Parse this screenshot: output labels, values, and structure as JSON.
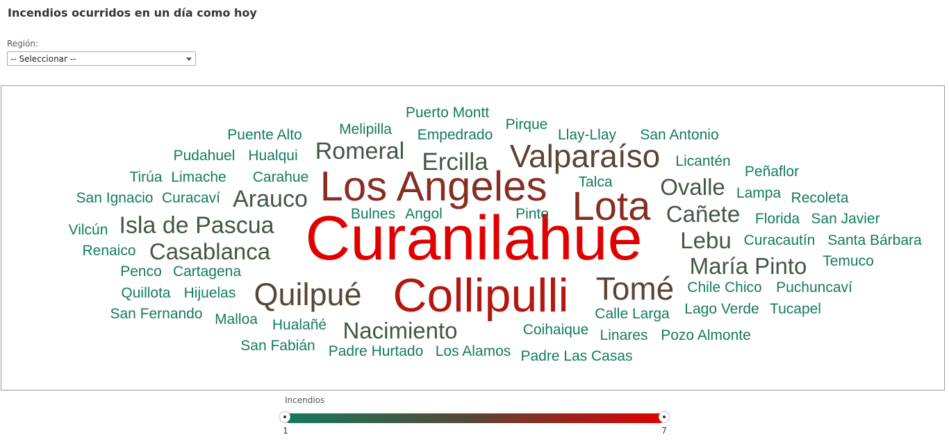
{
  "page": {
    "title": "Incendios ocurridos en un día como hoy"
  },
  "filter": {
    "label": "Región:",
    "selected": "-- Seleccionar --"
  },
  "legend": {
    "title": "Incendios",
    "min_label": "1",
    "max_label": "7",
    "color_low": "#137a5e",
    "color_high": "#e00000"
  },
  "chart_data": {
    "type": "wordcloud",
    "value_label": "Incendios",
    "value_range": [
      1,
      7
    ],
    "words": [
      {
        "text": "Curanilahue",
        "value": 7
      },
      {
        "text": "Collipulli",
        "value": 6
      },
      {
        "text": "Los Angeles",
        "value": 5
      },
      {
        "text": "Lota",
        "value": 5
      },
      {
        "text": "Quilpué",
        "value": 4
      },
      {
        "text": "Tomé",
        "value": 4
      },
      {
        "text": "Valparaíso",
        "value": 4
      },
      {
        "text": "Ercilla",
        "value": 3
      },
      {
        "text": "Romeral",
        "value": 3
      },
      {
        "text": "Arauco",
        "value": 3
      },
      {
        "text": "Isla de Pascua",
        "value": 3
      },
      {
        "text": "Casablanca",
        "value": 3
      },
      {
        "text": "Nacimiento",
        "value": 3
      },
      {
        "text": "Ovalle",
        "value": 3
      },
      {
        "text": "Cañete",
        "value": 3
      },
      {
        "text": "Lebu",
        "value": 3
      },
      {
        "text": "María Pinto",
        "value": 3
      },
      {
        "text": "Puerto Montt",
        "value": 1
      },
      {
        "text": "Melipilla",
        "value": 1
      },
      {
        "text": "Pirque",
        "value": 1
      },
      {
        "text": "Empedrado",
        "value": 1
      },
      {
        "text": "Llay-Llay",
        "value": 1
      },
      {
        "text": "San Antonio",
        "value": 1
      },
      {
        "text": "Puente Alto",
        "value": 1
      },
      {
        "text": "Pudahuel",
        "value": 1
      },
      {
        "text": "Hualqui",
        "value": 1
      },
      {
        "text": "Licantén",
        "value": 1
      },
      {
        "text": "Tirúa",
        "value": 1
      },
      {
        "text": "Limache",
        "value": 1
      },
      {
        "text": "Carahue",
        "value": 1
      },
      {
        "text": "Peñaflor",
        "value": 1
      },
      {
        "text": "Talca",
        "value": 1
      },
      {
        "text": "Lampa",
        "value": 1
      },
      {
        "text": "San Ignacio",
        "value": 1
      },
      {
        "text": "Curacaví",
        "value": 1
      },
      {
        "text": "Recoleta",
        "value": 1
      },
      {
        "text": "Bulnes",
        "value": 1
      },
      {
        "text": "Angol",
        "value": 1
      },
      {
        "text": "Pinto",
        "value": 1
      },
      {
        "text": "Florida",
        "value": 1
      },
      {
        "text": "San Javier",
        "value": 1
      },
      {
        "text": "Vilcún",
        "value": 1
      },
      {
        "text": "Curacautín",
        "value": 1
      },
      {
        "text": "Santa Bárbara",
        "value": 1
      },
      {
        "text": "Renaico",
        "value": 1
      },
      {
        "text": "Temuco",
        "value": 1
      },
      {
        "text": "Penco",
        "value": 1
      },
      {
        "text": "Cartagena",
        "value": 1
      },
      {
        "text": "Quillota",
        "value": 1
      },
      {
        "text": "Hijuelas",
        "value": 1
      },
      {
        "text": "Chile Chico",
        "value": 1
      },
      {
        "text": "Puchuncaví",
        "value": 1
      },
      {
        "text": "San Fernando",
        "value": 1
      },
      {
        "text": "Malloa",
        "value": 1
      },
      {
        "text": "Calle Larga",
        "value": 1
      },
      {
        "text": "Lago Verde",
        "value": 1
      },
      {
        "text": "Tucapel",
        "value": 1
      },
      {
        "text": "Hualañé",
        "value": 1
      },
      {
        "text": "Coihaique",
        "value": 1
      },
      {
        "text": "Linares",
        "value": 1
      },
      {
        "text": "Pozo Almonte",
        "value": 1
      },
      {
        "text": "San Fabián",
        "value": 1
      },
      {
        "text": "Padre Hurtado",
        "value": 1
      },
      {
        "text": "Los Alamos",
        "value": 1
      },
      {
        "text": "Padre Las Casas",
        "value": 1
      }
    ]
  }
}
